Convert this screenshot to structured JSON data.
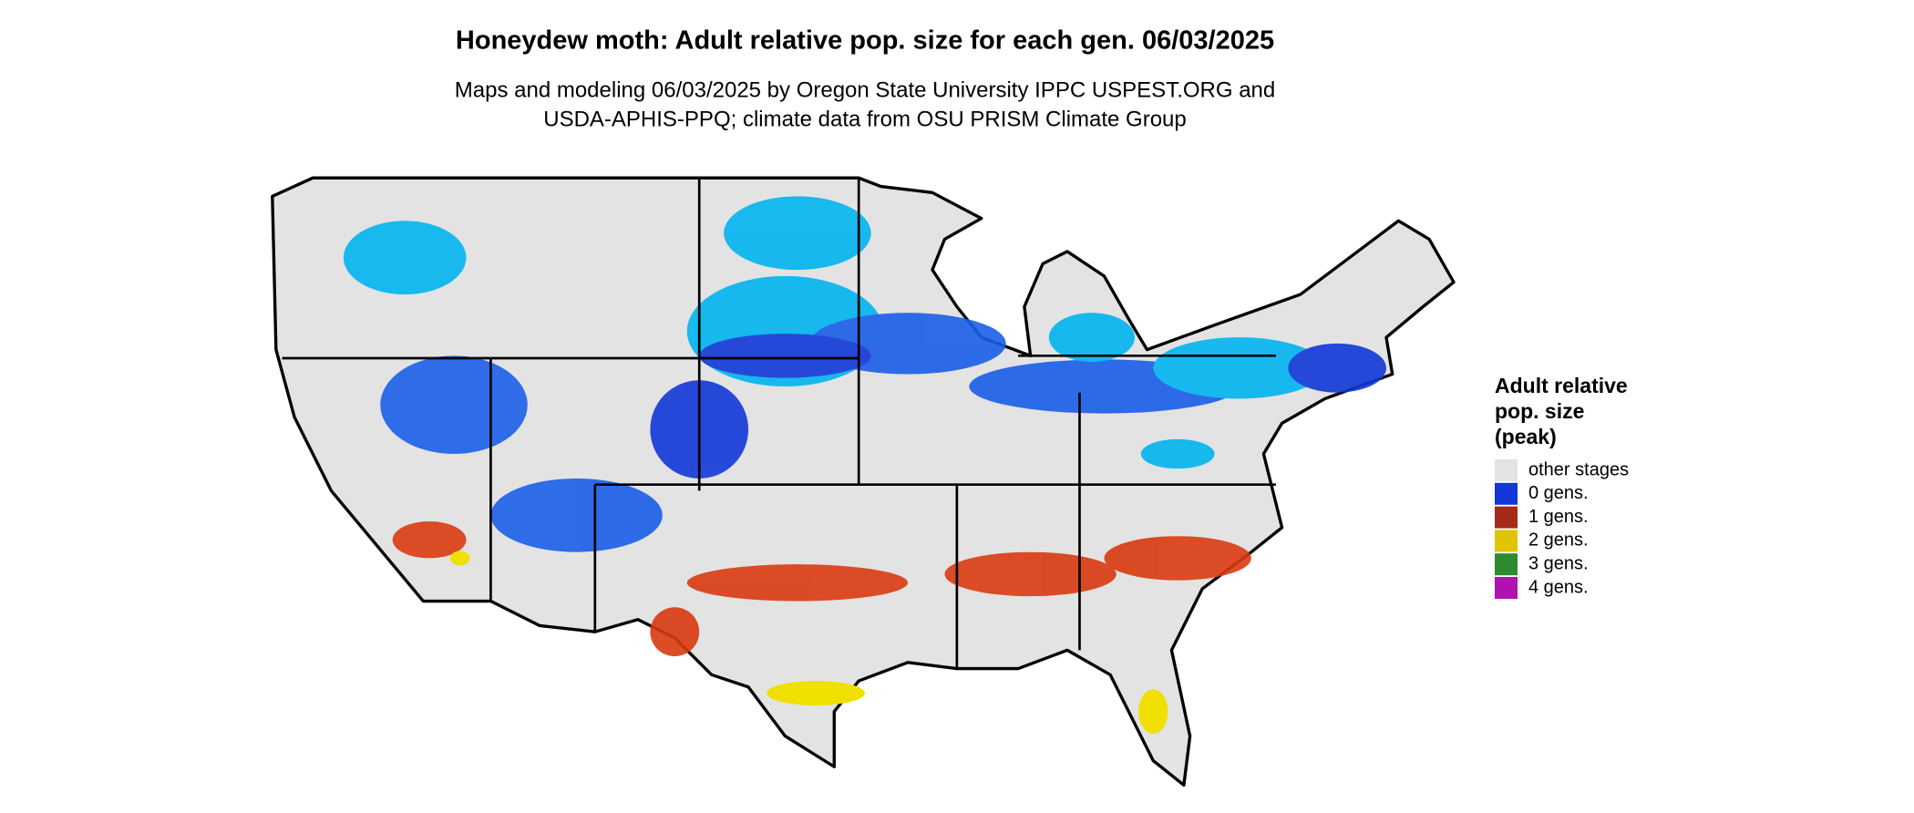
{
  "title": "Honeydew moth: Adult relative pop. size for each gen. 06/03/2025",
  "subtitle": [
    "Maps and modeling 06/03/2025 by Oregon State University IPPC USPEST.ORG and",
    "USDA-APHIS-PPQ; climate data from OSU PRISM Climate Group"
  ],
  "legend": {
    "title": [
      "Adult relative",
      "pop. size",
      "(peak)"
    ],
    "items": [
      {
        "label": "other stages",
        "color": "#e3e3e3"
      },
      {
        "label": "0 gens.",
        "color": "#1238d8"
      },
      {
        "label": "1 gens.",
        "color": "#a52a1a"
      },
      {
        "label": "2 gens.",
        "color": "#e0c400"
      },
      {
        "label": "3 gens.",
        "color": "#2e8b2e"
      },
      {
        "label": "4 gens.",
        "color": "#b012b0"
      }
    ]
  }
}
